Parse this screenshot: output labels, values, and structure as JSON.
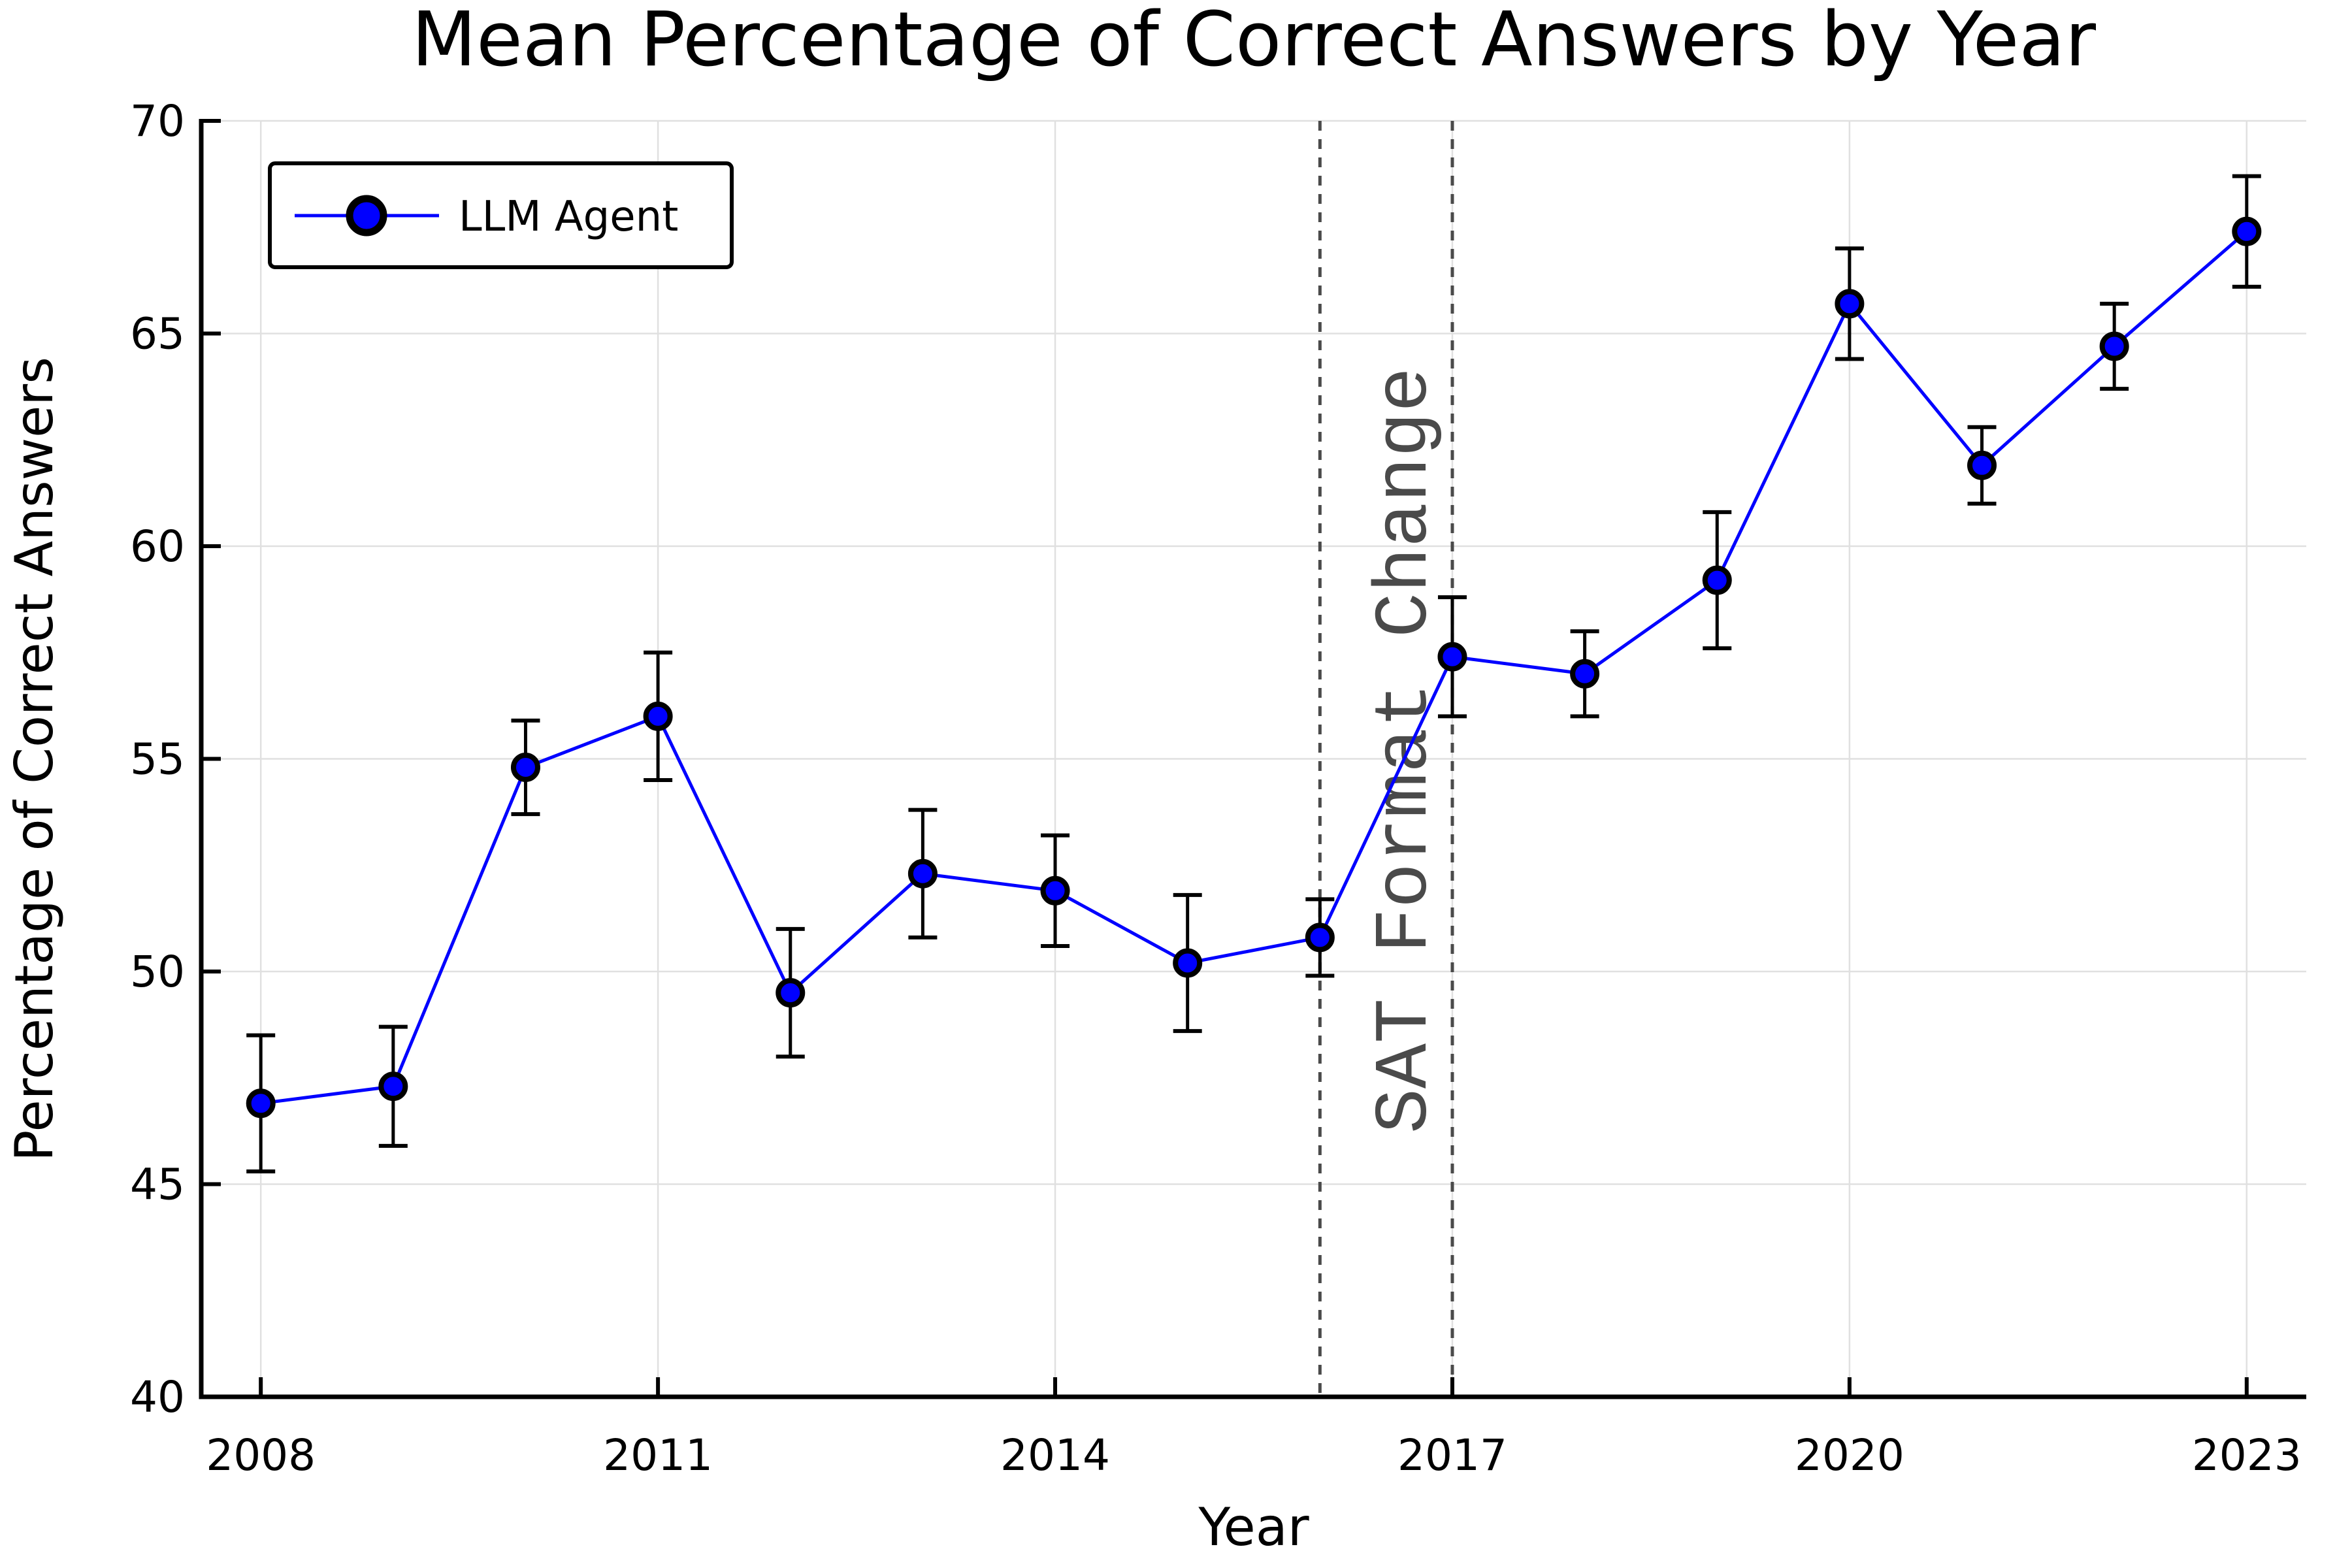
{
  "chart_data": {
    "type": "line",
    "title": "Mean Percentage of Correct Answers by Year",
    "xlabel": "Year",
    "ylabel": "Percentage of Correct Answers",
    "xlim": [
      2007.55,
      2023.45
    ],
    "ylim": [
      40,
      70
    ],
    "xticks": [
      2008,
      2011,
      2014,
      2017,
      2020,
      2023
    ],
    "yticks": [
      40,
      45,
      50,
      55,
      60,
      65,
      70
    ],
    "grid": true,
    "grid_color": "#e0e0e0",
    "axis_color": "#000000",
    "legend": {
      "position": "upper-left",
      "label": "LLM Agent"
    },
    "series": [
      {
        "name": "LLM Agent",
        "line_color": "#0000ff",
        "marker": "circle",
        "marker_face_color": "#0000ff",
        "marker_edge_color": "#000000",
        "error_bar_color": "#000000",
        "x": [
          2008,
          2009,
          2010,
          2011,
          2012,
          2013,
          2014,
          2015,
          2016,
          2017,
          2018,
          2019,
          2020,
          2021,
          2022,
          2023
        ],
        "y": [
          46.9,
          47.3,
          54.8,
          56.0,
          49.5,
          52.3,
          51.9,
          50.2,
          50.8,
          57.4,
          57.0,
          59.2,
          65.7,
          61.9,
          64.7,
          67.4
        ],
        "yerr": [
          1.6,
          1.4,
          1.1,
          1.5,
          1.5,
          1.5,
          1.3,
          1.6,
          0.9,
          1.4,
          1.0,
          1.6,
          1.3,
          0.9,
          1.0,
          1.3
        ]
      }
    ],
    "vlines": [
      {
        "x": 2016,
        "style": "dotted",
        "color": "#4a4a4a"
      },
      {
        "x": 2017,
        "style": "dotted",
        "color": "#4a4a4a"
      }
    ],
    "annotations": [
      {
        "text": "SAT Format Change",
        "x": 2016.6,
        "y": 55.2,
        "rotation": -90,
        "color": "#4a4a4a",
        "font": "monospace"
      }
    ]
  }
}
